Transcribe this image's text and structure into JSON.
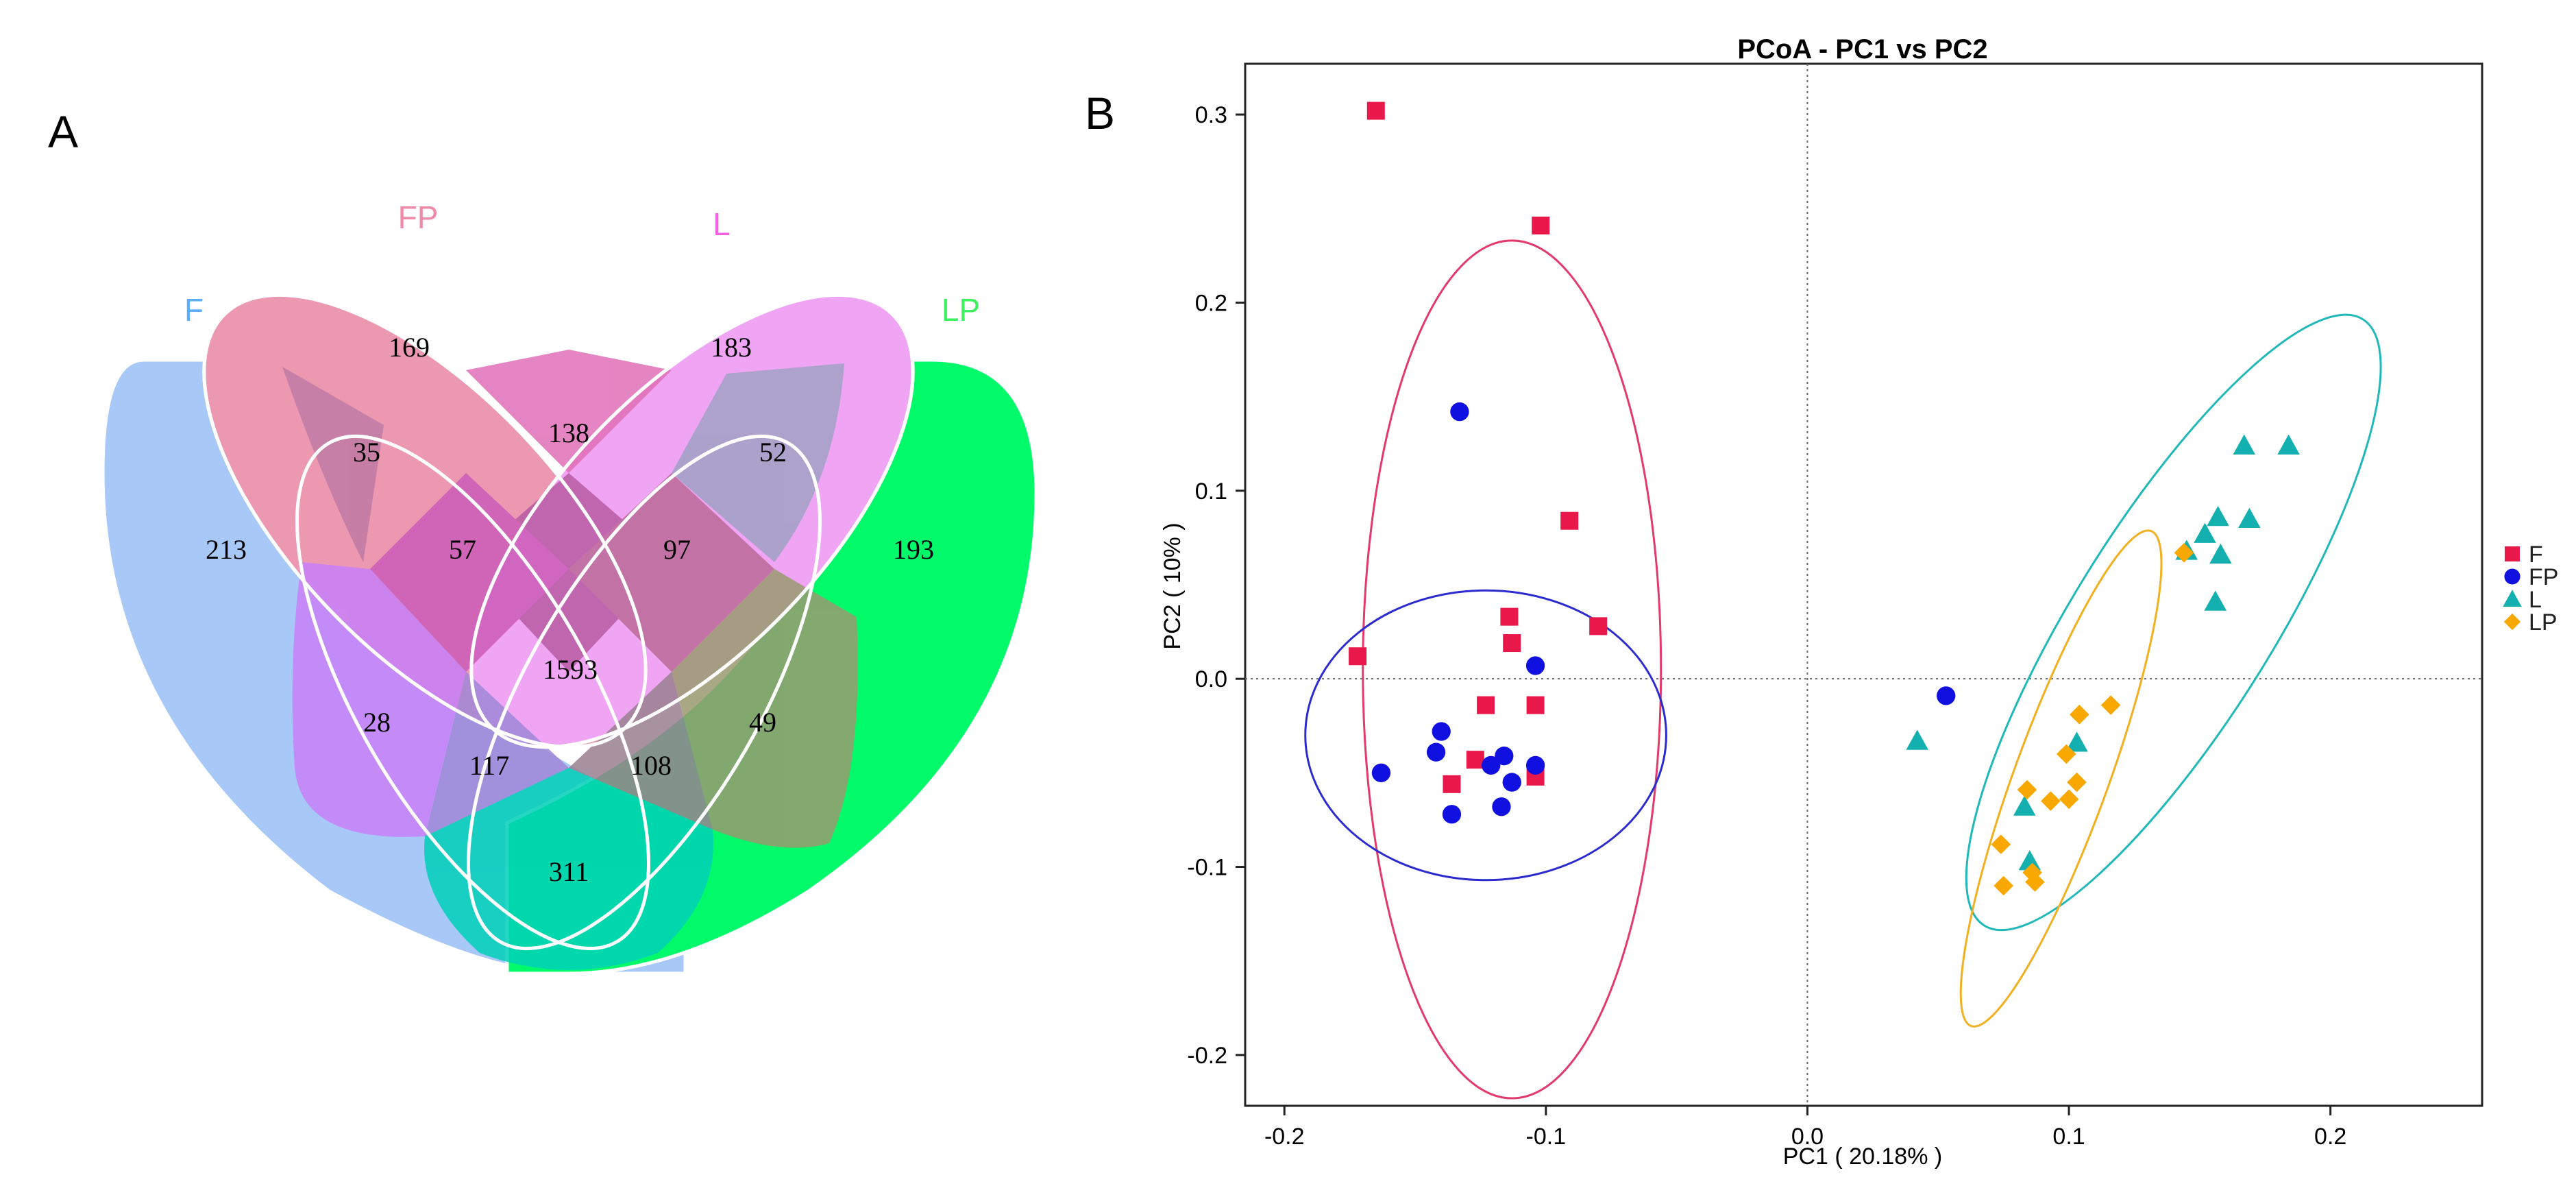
{
  "panels": {
    "venn_label": "A",
    "pcoa_label": "B"
  },
  "venn": {
    "sets": [
      {
        "key": "F",
        "label": "F",
        "color": "#5aaefc",
        "fill": "#a8c8f8"
      },
      {
        "key": "FP",
        "label": "FP",
        "color": "#f08aa8",
        "fill": "#ec98b0"
      },
      {
        "key": "L",
        "label": "L",
        "color": "#f060e0",
        "fill": "#f0a4f4"
      },
      {
        "key": "LP",
        "label": "LP",
        "color": "#3cf060",
        "fill": "#00fa6a"
      }
    ],
    "region_counts": {
      "F_only": "213",
      "FP_only": "169",
      "L_only": "183",
      "LP_only": "193",
      "F_FP": "35",
      "FP_L": "138",
      "L_LP": "52",
      "F_FP_L": "57",
      "FP_L_LP": "97",
      "all_four": "1593",
      "F_L": "28",
      "FP_LP": "49",
      "F_L_LP": "117",
      "F_FP_LP": "108",
      "F_LP": "311"
    }
  },
  "chart_data": {
    "type": "scatter",
    "title": "PCoA - PC1 vs PC2",
    "xlabel": "PC1 ( 20.18% )",
    "ylabel": "PC2 ( 10% )",
    "xlim": [
      -0.215,
      0.258
    ],
    "ylim": [
      -0.227,
      0.327
    ],
    "xticks": [
      -0.2,
      -0.1,
      0.0,
      0.1,
      0.2
    ],
    "xtick_labels": [
      "-0.2",
      "-0.1",
      "0.0",
      "0.1",
      "0.2"
    ],
    "yticks": [
      -0.2,
      -0.1,
      0.0,
      0.1,
      0.2,
      0.3
    ],
    "ytick_labels": [
      "-0.2",
      "-0.1",
      "0.0",
      "0.1",
      "0.2",
      "0.3"
    ],
    "reference_lines": {
      "x": 0.0,
      "y": 0.0,
      "style": "dotted"
    },
    "legend": {
      "position": "right"
    },
    "series": [
      {
        "name": "F",
        "marker": "square",
        "color": "#e8194a",
        "points": [
          [
            -0.165,
            0.302
          ],
          [
            -0.102,
            0.241
          ],
          [
            -0.091,
            0.084
          ],
          [
            -0.172,
            0.012
          ],
          [
            -0.114,
            0.033
          ],
          [
            -0.113,
            0.019
          ],
          [
            -0.08,
            0.028
          ],
          [
            -0.123,
            -0.014
          ],
          [
            -0.104,
            -0.014
          ],
          [
            -0.127,
            -0.043
          ],
          [
            -0.136,
            -0.056
          ],
          [
            -0.104,
            -0.052
          ]
        ]
      },
      {
        "name": "FP",
        "marker": "circle",
        "color": "#1010e0",
        "points": [
          [
            -0.133,
            0.142
          ],
          [
            -0.104,
            0.007
          ],
          [
            -0.14,
            -0.028
          ],
          [
            -0.142,
            -0.039
          ],
          [
            -0.116,
            -0.041
          ],
          [
            -0.121,
            -0.046
          ],
          [
            -0.104,
            -0.046
          ],
          [
            -0.163,
            -0.05
          ],
          [
            -0.113,
            -0.055
          ],
          [
            -0.136,
            -0.072
          ],
          [
            -0.117,
            -0.068
          ],
          [
            0.053,
            -0.009
          ]
        ]
      },
      {
        "name": "L",
        "marker": "triangle",
        "color": "#14b0b0",
        "points": [
          [
            0.167,
            0.124
          ],
          [
            0.184,
            0.124
          ],
          [
            0.157,
            0.086
          ],
          [
            0.169,
            0.085
          ],
          [
            0.152,
            0.077
          ],
          [
            0.145,
            0.068
          ],
          [
            0.158,
            0.066
          ],
          [
            0.156,
            0.041
          ],
          [
            0.042,
            -0.033
          ],
          [
            0.103,
            -0.034
          ],
          [
            0.083,
            -0.068
          ],
          [
            0.085,
            -0.097
          ]
        ]
      },
      {
        "name": "LP",
        "marker": "diamond",
        "color": "#f8a800",
        "points": [
          [
            0.144,
            0.067
          ],
          [
            0.116,
            -0.014
          ],
          [
            0.104,
            -0.019
          ],
          [
            0.099,
            -0.04
          ],
          [
            0.103,
            -0.055
          ],
          [
            0.084,
            -0.059
          ],
          [
            0.1,
            -0.064
          ],
          [
            0.093,
            -0.065
          ],
          [
            0.074,
            -0.088
          ],
          [
            0.086,
            -0.103
          ],
          [
            0.087,
            -0.108
          ],
          [
            0.075,
            -0.11
          ]
        ]
      }
    ],
    "ellipses": [
      {
        "series": "F",
        "color": "#e23a6c",
        "center": [
          -0.113,
          0.005
        ],
        "radii": [
          0.057,
          0.228
        ],
        "angle_deg": 0
      },
      {
        "series": "FP",
        "color": "#2b2bd0",
        "center": [
          -0.123,
          -0.03
        ],
        "radii": [
          0.069,
          0.077
        ],
        "angle_deg": 0
      },
      {
        "series": "L",
        "color": "#20b8b8",
        "center": [
          0.14,
          0.03
        ],
        "radii": [
          0.038,
          0.19
        ],
        "angle_deg": -32
      },
      {
        "series": "LP",
        "color": "#f0b020",
        "center": [
          0.097,
          -0.053
        ],
        "radii": [
          0.018,
          0.14
        ],
        "angle_deg": -20
      }
    ]
  }
}
